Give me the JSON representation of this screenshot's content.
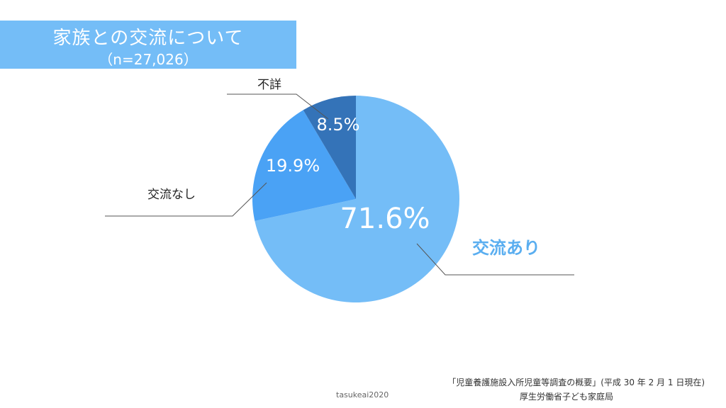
{
  "title": {
    "main": "家族との交流について",
    "sub": "（n=27,026）"
  },
  "chart_data": {
    "type": "pie",
    "slices": [
      {
        "label": "交流あり",
        "value": 71.6,
        "display": "71.6%",
        "color": "#74bdf7"
      },
      {
        "label": "交流なし",
        "value": 19.9,
        "display": "19.9%",
        "color": "#4aa2f5"
      },
      {
        "label": "不詳",
        "value": 8.5,
        "display": "8.5%",
        "color": "#3473b8"
      }
    ]
  },
  "source": {
    "line1": "「児童養護施設入所児童等調査の概要」(平成 30 年 2 月 1 日現在)",
    "line2": "厚生労働省子ども家庭局"
  },
  "credit": "tasukeai2020",
  "colors": {
    "title_bg": "#74bdf7",
    "accent_label": "#5aaef0",
    "leader": "#555555"
  }
}
